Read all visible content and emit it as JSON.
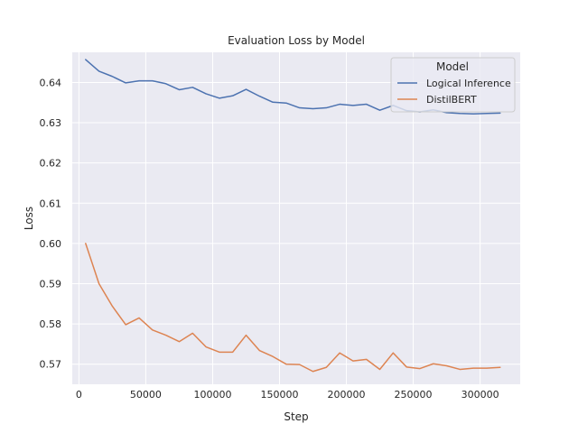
{
  "chart_data": {
    "type": "line",
    "title": "Evaluation Loss by Model",
    "xlabel": "Step",
    "ylabel": "Loss",
    "xlim": [
      -5000,
      330000
    ],
    "ylim": [
      0.565,
      0.6475
    ],
    "xticks": [
      0,
      50000,
      100000,
      150000,
      200000,
      250000,
      300000
    ],
    "yticks": [
      0.57,
      0.58,
      0.59,
      0.6,
      0.61,
      0.62,
      0.63,
      0.64
    ],
    "grid": true,
    "legend": {
      "title": "Model",
      "position": "top-right"
    },
    "x": [
      5000,
      15000,
      25000,
      35000,
      45000,
      55000,
      65000,
      75000,
      85000,
      95000,
      105000,
      115000,
      125000,
      135000,
      145000,
      155000,
      165000,
      175000,
      185000,
      195000,
      205000,
      215000,
      225000,
      235000,
      245000,
      255000,
      265000,
      275000,
      285000,
      295000,
      305000,
      315000
    ],
    "series": [
      {
        "name": "Logical Inference",
        "color": "#4c72b0",
        "values": [
          0.6457,
          0.6428,
          0.6415,
          0.6399,
          0.6404,
          0.6404,
          0.6397,
          0.6382,
          0.6388,
          0.6372,
          0.6361,
          0.6367,
          0.6383,
          0.6366,
          0.6351,
          0.6349,
          0.6337,
          0.6335,
          0.6337,
          0.6346,
          0.6343,
          0.6346,
          0.6331,
          0.6343,
          0.633,
          0.6327,
          0.6332,
          0.6325,
          0.6323,
          0.6322,
          0.6323,
          0.6324
        ]
      },
      {
        "name": "DistilBERT",
        "color": "#dd8452",
        "values": [
          0.6,
          0.59,
          0.5844,
          0.5798,
          0.5815,
          0.5785,
          0.5772,
          0.5756,
          0.5777,
          0.5743,
          0.573,
          0.573,
          0.5772,
          0.5734,
          0.5719,
          0.57,
          0.5699,
          0.5682,
          0.5692,
          0.5728,
          0.5708,
          0.5712,
          0.5687,
          0.5728,
          0.5693,
          0.5689,
          0.5701,
          0.5696,
          0.5687,
          0.569,
          0.569,
          0.5692
        ]
      }
    ]
  }
}
